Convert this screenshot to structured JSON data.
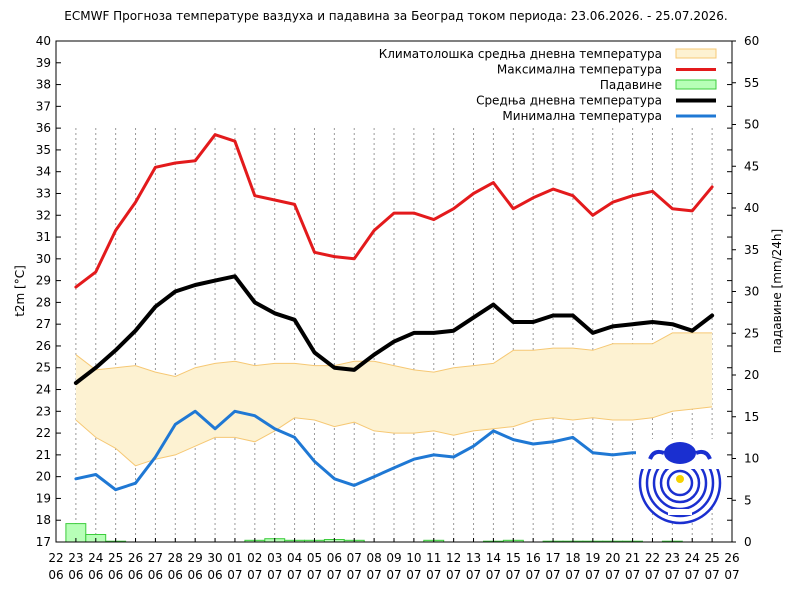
{
  "chart_data": {
    "type": "line",
    "title": "ECMWF Прогноза температуре ваздуха и падавина за Београд током периода: 23.06.2026. - 25.07.2026.",
    "ylabel": "t2m [°C]",
    "y2label": "падавине [mm/24h]",
    "ylim": [
      17,
      40
    ],
    "y2lim": [
      0,
      60
    ],
    "yticks": [
      "17",
      "18",
      "19",
      "20",
      "21",
      "22",
      "23",
      "24",
      "25",
      "26",
      "27",
      "28",
      "29",
      "30",
      "31",
      "32",
      "33",
      "34",
      "35",
      "36",
      "37",
      "38",
      "39",
      "40"
    ],
    "y2ticks": [
      "0",
      "5",
      "10",
      "15",
      "20",
      "25",
      "30",
      "35",
      "40",
      "45",
      "50",
      "55",
      "60"
    ],
    "x_day": [
      "22",
      "23",
      "24",
      "25",
      "26",
      "27",
      "28",
      "29",
      "30",
      "01",
      "02",
      "03",
      "04",
      "05",
      "06",
      "07",
      "08",
      "09",
      "10",
      "11",
      "12",
      "13",
      "14",
      "15",
      "16",
      "17",
      "18",
      "19",
      "20",
      "21",
      "22",
      "23",
      "24",
      "25",
      "26"
    ],
    "x_month": [
      "06",
      "06",
      "06",
      "06",
      "06",
      "06",
      "06",
      "06",
      "06",
      "07",
      "07",
      "07",
      "07",
      "07",
      "07",
      "07",
      "07",
      "07",
      "07",
      "07",
      "07",
      "07",
      "07",
      "07",
      "07",
      "07",
      "07",
      "07",
      "07",
      "07",
      "07",
      "07",
      "07",
      "07",
      "07"
    ],
    "grid": "vertical dashed",
    "legend_position": "top-right",
    "legend": [
      {
        "label": "Климатолошка средња дневна температура",
        "color": "#ffe7b0"
      },
      {
        "label": "Максимална температура",
        "color": "#e31a1c"
      },
      {
        "label": "Падавине",
        "color": "#90ff90"
      },
      {
        "label": "Средња дневна температура",
        "color": "#000000"
      },
      {
        "label": "Минимална температура",
        "color": "#1f78d4"
      }
    ],
    "series": [
      {
        "name": "Максимална температура",
        "color": "#e31a1c",
        "values": [
          28.7,
          29.4,
          31.3,
          32.6,
          34.2,
          34.4,
          34.5,
          35.7,
          35.4,
          32.9,
          32.7,
          32.5,
          30.3,
          30.1,
          30.0,
          31.3,
          32.1,
          32.1,
          31.8,
          32.3,
          33.0,
          33.5,
          32.3,
          32.8,
          33.2,
          32.9,
          32.0,
          32.6,
          32.9,
          33.1,
          32.3,
          32.2,
          33.3
        ]
      },
      {
        "name": "Средња дневна температура",
        "color": "#000000",
        "values": [
          24.3,
          25.0,
          25.8,
          26.7,
          27.8,
          28.5,
          28.8,
          29.0,
          29.2,
          28.0,
          27.5,
          27.2,
          25.7,
          25.0,
          24.9,
          25.6,
          26.2,
          26.6,
          26.6,
          26.7,
          27.3,
          27.9,
          27.1,
          27.1,
          27.4,
          27.4,
          26.6,
          26.9,
          27.0,
          27.1,
          27.0,
          26.7,
          27.4
        ]
      },
      {
        "name": "Минимална температура",
        "color": "#1f78d4",
        "values": [
          19.9,
          20.1,
          19.4,
          19.7,
          20.9,
          22.4,
          23.0,
          22.2,
          23.0,
          22.8,
          22.2,
          21.8,
          20.7,
          19.9,
          19.6,
          20.0,
          20.4,
          20.8,
          21.0,
          20.9,
          21.4,
          22.1,
          21.7,
          21.5,
          21.6,
          21.8,
          21.1,
          21.0,
          21.1,
          21.1,
          21.2,
          21.2,
          21.3
        ]
      },
      {
        "name": "Климатолошка средња дневна температура (горња граница)",
        "values": [
          25.6,
          24.9,
          25.0,
          25.1,
          24.8,
          24.6,
          25.0,
          25.2,
          25.3,
          25.1,
          25.2,
          25.2,
          25.1,
          25.1,
          25.3,
          25.3,
          25.1,
          24.9,
          24.8,
          25.0,
          25.1,
          25.2,
          25.8,
          25.8,
          25.9,
          25.9,
          25.8,
          26.1,
          26.1,
          26.1,
          26.6,
          26.6,
          26.6
        ]
      },
      {
        "name": "Климатолошка средња дневна температура (доња граница)",
        "values": [
          22.6,
          21.8,
          21.3,
          20.5,
          20.8,
          21.0,
          21.4,
          21.8,
          21.8,
          21.6,
          22.1,
          22.7,
          22.6,
          22.3,
          22.5,
          22.1,
          22.0,
          22.0,
          22.1,
          21.9,
          22.1,
          22.2,
          22.3,
          22.6,
          22.7,
          22.6,
          22.7,
          22.6,
          22.6,
          22.7,
          23.0,
          23.1,
          23.2
        ]
      },
      {
        "name": "Падавине",
        "color": "#90ff90",
        "values": [
          2.2,
          0.9,
          0.1,
          0,
          0,
          0,
          0,
          0,
          0,
          0.2,
          0.4,
          0.2,
          0.2,
          0.3,
          0.2,
          0,
          0,
          0,
          0.2,
          0,
          0,
          0.1,
          0.2,
          0,
          0.1,
          0.1,
          0.1,
          0.1,
          0.1,
          0,
          0.1,
          0,
          0
        ]
      }
    ]
  }
}
